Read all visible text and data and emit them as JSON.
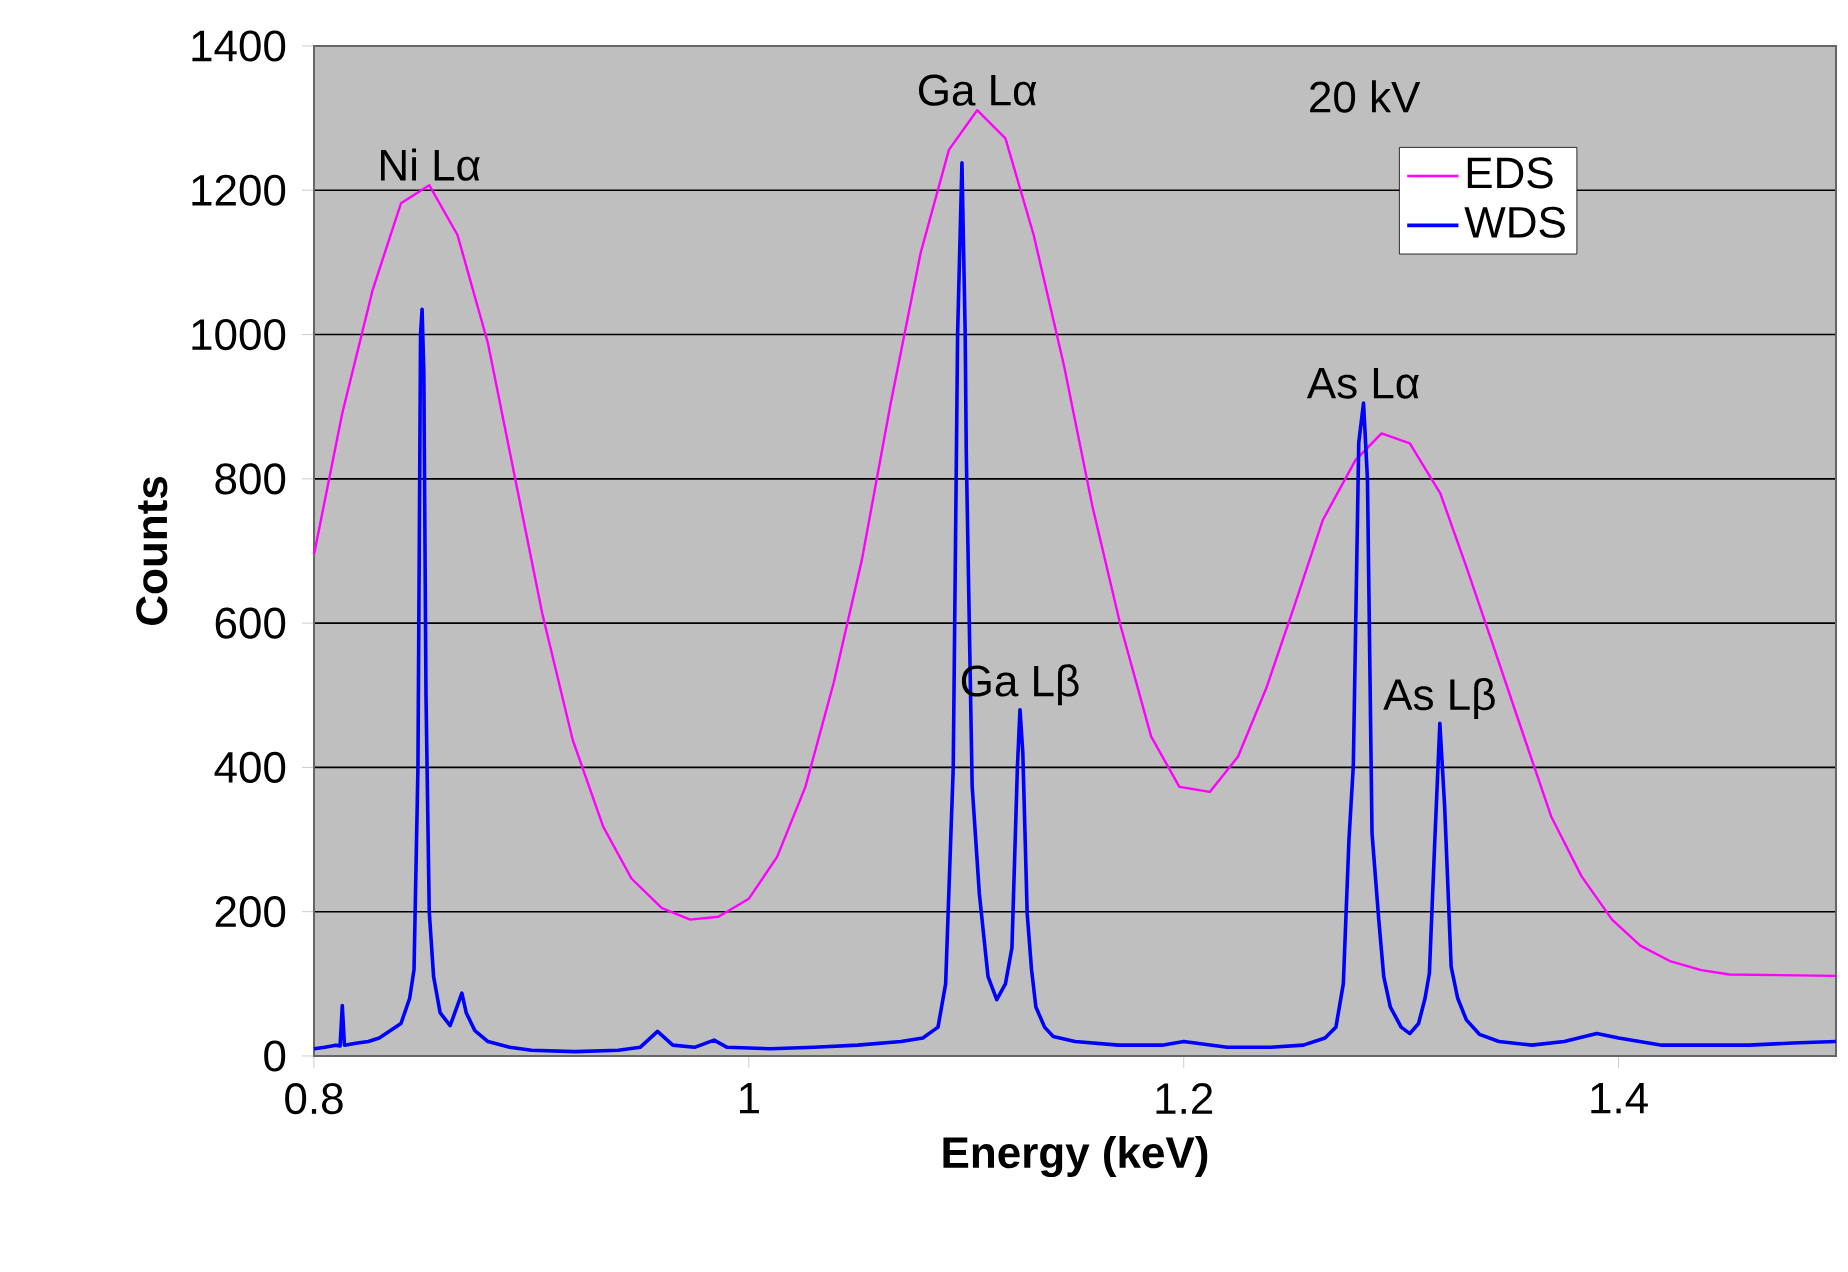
{
  "chart_data": {
    "type": "line",
    "xlabel": "Energy (keV)",
    "ylabel": "Counts",
    "xlim": [
      0.8,
      1.5
    ],
    "xticks": [
      0.8,
      1,
      1.2,
      1.4
    ],
    "ylim": [
      0,
      1400
    ],
    "yticks": [
      0,
      200,
      400,
      600,
      800,
      1000,
      1200,
      1400
    ],
    "grid": "y",
    "legend": "top right",
    "marker": "none",
    "line_style": "solid",
    "series": [
      {
        "name": "EDS",
        "color": "#ff00ff",
        "x": [
          0.8,
          0.813,
          0.827,
          0.84,
          0.853,
          0.866,
          0.88,
          0.892,
          0.905,
          0.919,
          0.933,
          0.946,
          0.96,
          0.973,
          0.986,
          1.0,
          1.013,
          1.026,
          1.039,
          1.052,
          1.065,
          1.079,
          1.092,
          1.105,
          1.118,
          1.131,
          1.145,
          1.158,
          1.171,
          1.185,
          1.198,
          1.212,
          1.225,
          1.238,
          1.251,
          1.264,
          1.279,
          1.291,
          1.304,
          1.318,
          1.33,
          1.342,
          1.356,
          1.369,
          1.383,
          1.397,
          1.41,
          1.424,
          1.438,
          1.451,
          1.5
        ],
        "values": [
          695,
          891,
          1062,
          1182,
          1207,
          1138,
          988,
          808,
          613,
          438,
          318,
          246,
          205,
          189,
          193,
          218,
          276,
          373,
          517,
          688,
          901,
          1113,
          1256,
          1311,
          1272,
          1138,
          956,
          762,
          596,
          443,
          373,
          366,
          415,
          510,
          625,
          743,
          826,
          863,
          849,
          780,
          678,
          572,
          447,
          332,
          249,
          189,
          153,
          131,
          119,
          113,
          111
        ]
      },
      {
        "name": "WDS",
        "color": "#0000ff",
        "x": [
          0.8,
          0.805,
          0.81,
          0.812,
          0.813,
          0.814,
          0.82,
          0.825,
          0.83,
          0.835,
          0.84,
          0.844,
          0.846,
          0.8478,
          0.849,
          0.8497,
          0.8505,
          0.8515,
          0.853,
          0.855,
          0.858,
          0.8626,
          0.866,
          0.868,
          0.87,
          0.874,
          0.88,
          0.89,
          0.9,
          0.92,
          0.94,
          0.95,
          0.958,
          0.965,
          0.975,
          0.984,
          0.99,
          1.01,
          1.03,
          1.05,
          1.07,
          1.08,
          1.087,
          1.0905,
          1.094,
          1.096,
          1.098,
          1.0995,
          1.1,
          1.1027,
          1.106,
          1.11,
          1.114,
          1.118,
          1.121,
          1.1235,
          1.1247,
          1.126,
          1.128,
          1.13,
          1.132,
          1.136,
          1.14,
          1.15,
          1.17,
          1.19,
          1.2,
          1.22,
          1.24,
          1.255,
          1.265,
          1.27,
          1.2734,
          1.276,
          1.278,
          1.2805,
          1.2827,
          1.2845,
          1.2866,
          1.2897,
          1.292,
          1.295,
          1.3,
          1.304,
          1.308,
          1.311,
          1.313,
          1.3155,
          1.3178,
          1.32,
          1.323,
          1.326,
          1.33,
          1.336,
          1.345,
          1.36,
          1.375,
          1.39,
          1.4,
          1.42,
          1.44,
          1.46,
          1.48,
          1.5
        ],
        "values": [
          10,
          12,
          15,
          14,
          70,
          15,
          18,
          20,
          25,
          35,
          45,
          80,
          120,
          400,
          1000,
          1035,
          950,
          500,
          200,
          110,
          60,
          42,
          70,
          87,
          60,
          35,
          20,
          12,
          8,
          6,
          8,
          12,
          34,
          15,
          12,
          22,
          12,
          10,
          12,
          15,
          20,
          25,
          40,
          100,
          400,
          1000,
          1238,
          1000,
          835,
          374,
          225,
          110,
          78,
          100,
          150,
          400,
          480,
          420,
          198,
          120,
          68,
          40,
          27,
          20,
          15,
          15,
          20,
          12,
          12,
          15,
          25,
          40,
          100,
          300,
          402,
          850,
          905,
          800,
          309,
          189,
          110,
          68,
          40,
          31,
          45,
          80,
          115,
          300,
          461,
          346,
          124,
          80,
          50,
          30,
          20,
          15,
          20,
          31,
          25,
          15,
          15,
          15,
          18,
          20
        ]
      }
    ],
    "annotations": [
      "20 kV",
      {
        "text": "Ni Lα",
        "x": 0.853,
        "y": 1207
      },
      {
        "text": "Ga Lα",
        "x": 1.105,
        "y": 1311
      },
      {
        "text": "Ga Lβ",
        "x": 1.1247,
        "y": 480
      },
      {
        "text": "As Lα",
        "x": 1.2827,
        "y": 905
      },
      {
        "text": "As Lβ",
        "x": 1.3178,
        "y": 461
      }
    ]
  }
}
